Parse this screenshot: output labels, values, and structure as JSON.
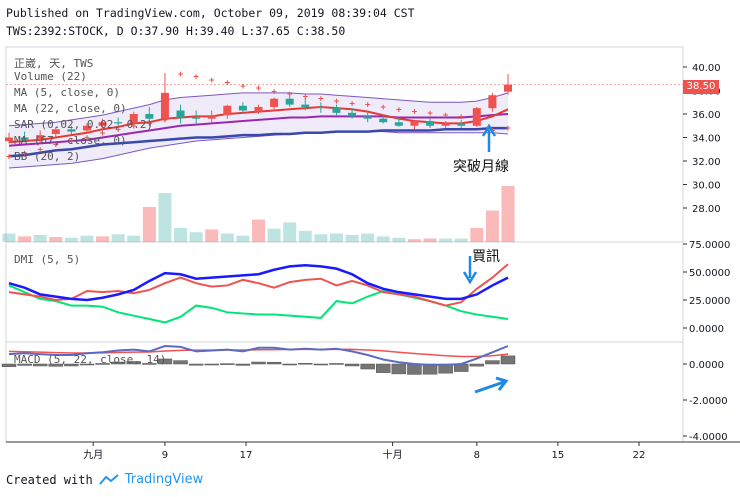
{
  "header": {
    "line1": "Published on TradingView.com, October 09, 2019 08:39:04 CST",
    "line2": "TWS:2392:STOCK, D O:37.90 H:39.40 L:37.65 C:38.50"
  },
  "legend": {
    "symbol": "正崴, 天, TWS",
    "volume": "Volume (22)",
    "ma5": "MA (5, close, 0)",
    "ma22": "MA (22, close, 0)",
    "sar": "SAR (0.02, 0.02, 0.2)",
    "ma67": "MA (67, close, 0)",
    "bb": "BB (20, 2)",
    "dmi": "DMI (5, 5)",
    "macd": "MACD (5, 22, close, 14)"
  },
  "annotations": {
    "breakout": "突破月線",
    "buy": "買訊"
  },
  "price_label": "38.50",
  "footer": {
    "created": "Created with",
    "brand": "TradingView"
  },
  "colors": {
    "up": "#ef5350",
    "down": "#26a69a",
    "ma5": "#e53935",
    "ma22": "#9c27b0",
    "ma67": "#3949ab",
    "bb": "#7e57c2",
    "sar": "#ef5350",
    "di_plus": "#ef5350",
    "di_minus": "#00e676",
    "adx": "#1a1aff",
    "macd": "#5c6bc0",
    "signal": "#ef5350",
    "hist": "#757575",
    "arrow": "#1e88e5"
  },
  "chart_data": [
    {
      "type": "candlestick",
      "title": "正崴, 天, TWS",
      "x_ticks": [
        "九月",
        "9",
        "17",
        "十月",
        "8",
        "15",
        "22"
      ],
      "price_axis": [
        40.0,
        38.0,
        36.0,
        34.0,
        32.0,
        30.0,
        28.0
      ],
      "candles": [
        {
          "o": 33.7,
          "h": 34.4,
          "l": 33.5,
          "c": 34.0
        },
        {
          "o": 34.0,
          "h": 34.5,
          "l": 33.6,
          "c": 33.8
        },
        {
          "o": 33.9,
          "h": 34.6,
          "l": 33.6,
          "c": 34.2
        },
        {
          "o": 34.3,
          "h": 34.9,
          "l": 34.0,
          "c": 34.7
        },
        {
          "o": 34.7,
          "h": 35.0,
          "l": 34.3,
          "c": 34.5
        },
        {
          "o": 34.6,
          "h": 35.2,
          "l": 34.4,
          "c": 35.0
        },
        {
          "o": 35.0,
          "h": 35.6,
          "l": 34.8,
          "c": 35.3
        },
        {
          "o": 35.3,
          "h": 35.7,
          "l": 35.0,
          "c": 35.2
        },
        {
          "o": 35.2,
          "h": 36.2,
          "l": 35.0,
          "c": 36.0
        },
        {
          "o": 36.0,
          "h": 36.6,
          "l": 35.4,
          "c": 35.6
        },
        {
          "o": 35.6,
          "h": 39.5,
          "l": 35.4,
          "c": 37.8
        },
        {
          "o": 36.3,
          "h": 36.8,
          "l": 35.2,
          "c": 35.7
        },
        {
          "o": 35.7,
          "h": 36.3,
          "l": 35.2,
          "c": 35.6
        },
        {
          "o": 35.6,
          "h": 36.3,
          "l": 35.3,
          "c": 35.9
        },
        {
          "o": 35.9,
          "h": 36.8,
          "l": 35.6,
          "c": 36.7
        },
        {
          "o": 36.7,
          "h": 37.0,
          "l": 36.1,
          "c": 36.3
        },
        {
          "o": 36.2,
          "h": 36.8,
          "l": 36.0,
          "c": 36.6
        },
        {
          "o": 36.6,
          "h": 37.4,
          "l": 36.3,
          "c": 37.3
        },
        {
          "o": 37.3,
          "h": 37.5,
          "l": 36.6,
          "c": 36.8
        },
        {
          "o": 36.8,
          "h": 37.3,
          "l": 36.3,
          "c": 36.6
        },
        {
          "o": 36.6,
          "h": 37.0,
          "l": 36.1,
          "c": 36.5
        },
        {
          "o": 36.5,
          "h": 36.8,
          "l": 35.9,
          "c": 36.1
        },
        {
          "o": 36.1,
          "h": 36.5,
          "l": 35.6,
          "c": 35.8
        },
        {
          "o": 35.8,
          "h": 36.2,
          "l": 35.3,
          "c": 35.6
        },
        {
          "o": 35.6,
          "h": 36.0,
          "l": 35.2,
          "c": 35.3
        },
        {
          "o": 35.3,
          "h": 35.7,
          "l": 34.9,
          "c": 35.0
        },
        {
          "o": 35.0,
          "h": 35.5,
          "l": 34.7,
          "c": 35.4
        },
        {
          "o": 35.4,
          "h": 35.6,
          "l": 34.8,
          "c": 35.0
        },
        {
          "o": 35.0,
          "h": 35.4,
          "l": 34.8,
          "c": 35.2
        },
        {
          "o": 35.2,
          "h": 35.5,
          "l": 34.8,
          "c": 35.0
        },
        {
          "o": 35.0,
          "h": 36.6,
          "l": 34.9,
          "c": 36.5
        },
        {
          "o": 36.5,
          "h": 37.8,
          "l": 36.2,
          "c": 37.6
        },
        {
          "o": 37.9,
          "h": 39.4,
          "l": 37.65,
          "c": 38.5
        }
      ],
      "ma5": [
        33.6,
        33.7,
        33.8,
        34.0,
        34.2,
        34.4,
        34.7,
        34.9,
        35.2,
        35.3,
        35.6,
        35.7,
        35.8,
        35.8,
        36.0,
        36.1,
        36.2,
        36.3,
        36.4,
        36.5,
        36.6,
        36.5,
        36.4,
        36.2,
        35.9,
        35.6,
        35.4,
        35.3,
        35.2,
        35.2,
        35.4,
        35.8,
        36.4
      ],
      "ma22": [
        33.3,
        33.4,
        33.5,
        33.6,
        33.7,
        33.8,
        34.0,
        34.2,
        34.4,
        34.6,
        34.8,
        35.0,
        35.1,
        35.2,
        35.3,
        35.4,
        35.5,
        35.6,
        35.7,
        35.7,
        35.8,
        35.8,
        35.8,
        35.8,
        35.8,
        35.7,
        35.7,
        35.7,
        35.7,
        35.7,
        35.8,
        35.9,
        36.0
      ],
      "ma67": [
        32.4,
        32.5,
        32.7,
        32.9,
        33.0,
        33.2,
        33.4,
        33.5,
        33.6,
        33.7,
        33.8,
        33.9,
        34.0,
        34.0,
        34.1,
        34.2,
        34.2,
        34.3,
        34.3,
        34.4,
        34.4,
        34.5,
        34.5,
        34.5,
        34.6,
        34.6,
        34.6,
        34.6,
        34.7,
        34.7,
        34.7,
        34.8,
        34.8
      ],
      "bb_upper": [
        35.0,
        35.1,
        35.2,
        35.3,
        35.5,
        35.7,
        35.9,
        36.2,
        36.5,
        36.8,
        37.2,
        37.4,
        37.5,
        37.6,
        37.7,
        37.8,
        37.8,
        37.8,
        37.8,
        37.7,
        37.7,
        37.6,
        37.5,
        37.4,
        37.3,
        37.2,
        37.1,
        37.0,
        37.0,
        37.0,
        37.1,
        37.4,
        37.8
      ],
      "bb_lower": [
        31.4,
        31.5,
        31.6,
        31.7,
        31.8,
        32.0,
        32.2,
        32.5,
        32.8,
        33.1,
        33.3,
        33.5,
        33.7,
        33.8,
        33.9,
        34.0,
        34.1,
        34.2,
        34.3,
        34.4,
        34.4,
        34.5,
        34.5,
        34.5,
        34.5,
        34.4,
        34.4,
        34.4,
        34.4,
        34.4,
        34.4,
        34.4,
        34.3
      ],
      "sar": [
        32.4,
        32.7,
        33.0,
        33.4,
        33.7,
        34.0,
        34.4,
        34.7,
        35.0,
        35.2,
        35.5,
        39.4,
        39.2,
        38.9,
        38.7,
        38.4,
        38.2,
        37.9,
        37.7,
        37.5,
        37.3,
        37.1,
        36.9,
        36.8,
        36.6,
        36.4,
        36.2,
        36.1,
        35.9,
        35.8,
        35.6,
        34.6,
        34.8
      ],
      "volume": [
        1.2,
        0.8,
        1.0,
        0.7,
        0.6,
        0.9,
        0.8,
        1.1,
        0.9,
        5.0,
        7.0,
        2.0,
        1.4,
        1.8,
        1.2,
        0.9,
        3.2,
        1.9,
        2.8,
        1.6,
        1.1,
        1.2,
        1.0,
        1.2,
        0.8,
        0.6,
        0.4,
        0.5,
        0.5,
        0.5,
        2.0,
        4.5,
        8.0
      ],
      "volume_up": [
        false,
        true,
        false,
        true,
        false,
        false,
        true,
        false,
        false,
        true,
        false,
        false,
        false,
        true,
        false,
        false,
        true,
        false,
        false,
        false,
        false,
        false,
        false,
        false,
        false,
        false,
        true,
        true,
        false,
        false,
        true,
        true,
        true
      ]
    },
    {
      "type": "line",
      "title": "DMI (5, 5)",
      "y_axis": [
        75.0,
        50.0,
        25.0,
        0.0
      ],
      "ylim": [
        -5,
        78
      ],
      "series": [
        {
          "name": "+DI",
          "values": [
            32,
            30,
            28,
            25,
            26,
            33,
            32,
            33,
            31,
            34,
            40,
            45,
            40,
            37,
            38,
            43,
            40,
            36,
            41,
            43,
            44,
            38,
            42,
            38,
            32,
            30,
            28,
            24,
            20,
            23,
            35,
            45,
            57
          ]
        },
        {
          "name": "-DI",
          "values": [
            38,
            32,
            26,
            24,
            20,
            20,
            19,
            14,
            11,
            8,
            5,
            10,
            20,
            18,
            14,
            13,
            12,
            12,
            11,
            10,
            9,
            24,
            22,
            28,
            33,
            30,
            27,
            24,
            20,
            15,
            12,
            10,
            8
          ]
        },
        {
          "name": "ADX",
          "values": [
            40,
            36,
            30,
            28,
            26,
            25,
            27,
            30,
            34,
            42,
            49,
            48,
            44,
            45,
            46,
            47,
            48,
            52,
            55,
            56,
            55,
            53,
            48,
            40,
            35,
            32,
            30,
            28,
            26,
            26,
            30,
            38,
            45
          ]
        }
      ]
    },
    {
      "type": "line",
      "title": "MACD (5, 22, close, 14)",
      "y_axis": [
        0.0,
        -2.0,
        -4.0
      ],
      "ylim": [
        -4.5,
        1.3
      ],
      "series": [
        {
          "name": "MACD",
          "values": [
            0.55,
            0.6,
            0.55,
            0.5,
            0.5,
            0.6,
            0.65,
            0.75,
            0.8,
            0.7,
            1.0,
            0.95,
            0.7,
            0.75,
            0.8,
            0.7,
            0.9,
            0.9,
            0.8,
            0.85,
            0.8,
            0.85,
            0.7,
            0.5,
            0.25,
            0.1,
            0.0,
            -0.05,
            -0.05,
            0.0,
            0.3,
            0.65,
            1.0
          ]
        },
        {
          "name": "Signal",
          "values": [
            0.7,
            0.68,
            0.66,
            0.63,
            0.61,
            0.61,
            0.62,
            0.64,
            0.66,
            0.67,
            0.72,
            0.76,
            0.77,
            0.77,
            0.78,
            0.78,
            0.79,
            0.8,
            0.81,
            0.81,
            0.81,
            0.82,
            0.81,
            0.78,
            0.73,
            0.65,
            0.58,
            0.52,
            0.46,
            0.42,
            0.42,
            0.46,
            0.55
          ]
        },
        {
          "name": "Histogram",
          "values": [
            -0.15,
            -0.08,
            -0.11,
            -0.13,
            -0.11,
            -0.01,
            0.03,
            0.11,
            0.14,
            0.03,
            0.28,
            0.19,
            -0.07,
            -0.02,
            0.02,
            -0.08,
            0.11,
            0.1,
            -0.01,
            0.04,
            -0.01,
            0.03,
            -0.11,
            -0.28,
            -0.48,
            -0.55,
            -0.58,
            -0.57,
            -0.51,
            -0.42,
            -0.12,
            0.19,
            0.45
          ]
        }
      ]
    }
  ]
}
